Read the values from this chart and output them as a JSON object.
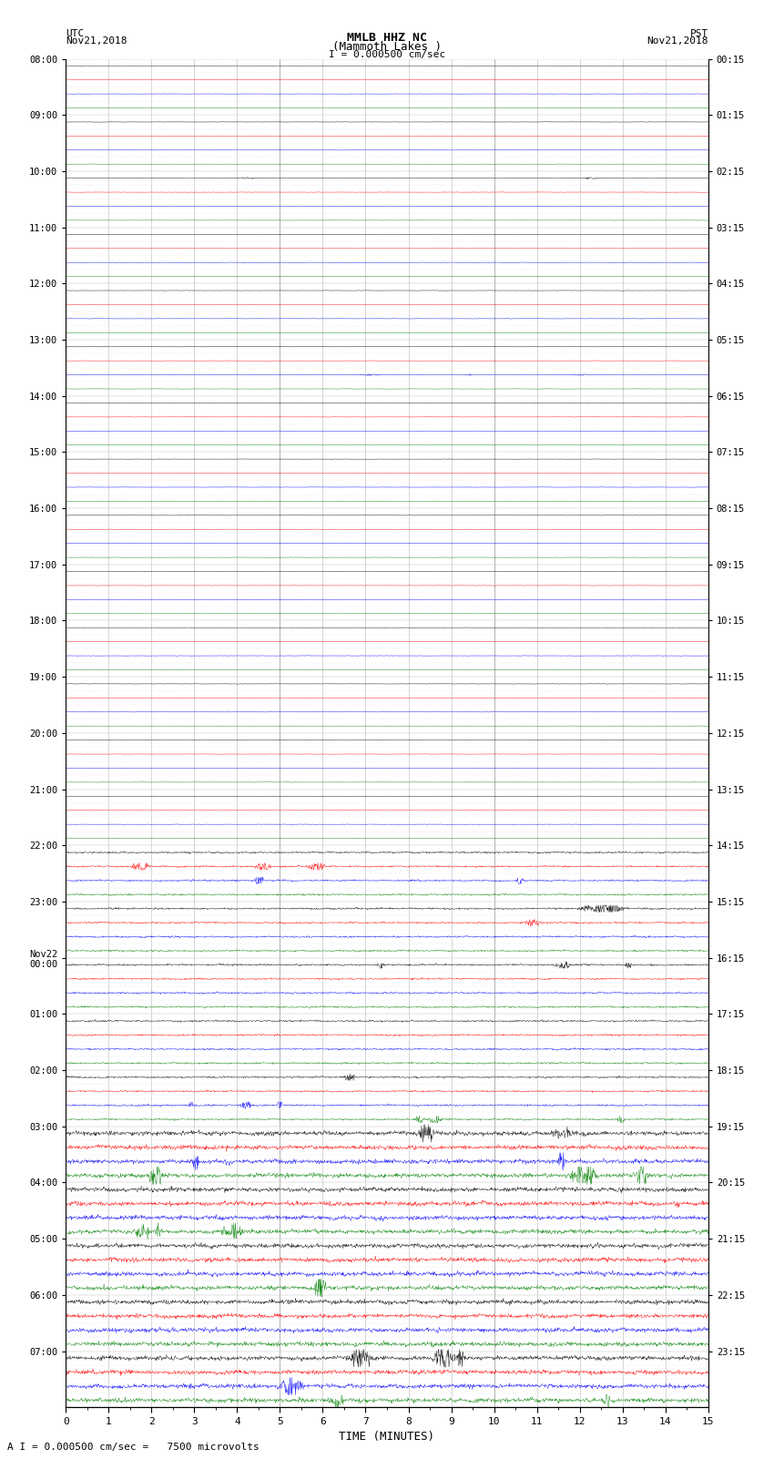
{
  "title_line1": "MMLB HHZ NC",
  "title_line2": "(Mammoth Lakes )",
  "scale_label": "I = 0.000500 cm/sec",
  "bottom_label": "A I = 0.000500 cm/sec =   7500 microvolts",
  "xlabel": "TIME (MINUTES)",
  "utc_header": "UTC",
  "utc_date": "Nov21,2018",
  "pst_header": "PST",
  "pst_date": "Nov21,2018",
  "utc_times_labeled": [
    "08:00",
    "09:00",
    "10:00",
    "11:00",
    "12:00",
    "13:00",
    "14:00",
    "15:00",
    "16:00",
    "17:00",
    "18:00",
    "19:00",
    "20:00",
    "21:00",
    "22:00",
    "23:00",
    "Nov22\n00:00",
    "01:00",
    "02:00",
    "03:00",
    "04:00",
    "05:00",
    "06:00",
    "07:00"
  ],
  "pst_times_labeled": [
    "00:15",
    "01:15",
    "02:15",
    "03:15",
    "04:15",
    "05:15",
    "06:15",
    "07:15",
    "08:15",
    "09:15",
    "10:15",
    "11:15",
    "12:15",
    "13:15",
    "14:15",
    "15:15",
    "16:15",
    "17:15",
    "18:15",
    "19:15",
    "20:15",
    "21:15",
    "22:15",
    "23:15"
  ],
  "trace_colors": [
    "black",
    "red",
    "blue",
    "green"
  ],
  "n_hours": 24,
  "traces_per_hour": 4,
  "n_points": 1500,
  "xmin": 0,
  "xmax": 15,
  "background_color": "white",
  "grid_color": "#999999",
  "figsize": [
    8.5,
    16.13
  ],
  "dpi": 100,
  "amp_quiet": 0.015,
  "amp_moderate": 0.07,
  "amp_active": 0.18,
  "quiet_hours": [
    0,
    1,
    2,
    3,
    4,
    5,
    6,
    7,
    8,
    9,
    10,
    11,
    12,
    13
  ],
  "moderate_hours": [
    14,
    15,
    16,
    17,
    18
  ],
  "active_hours": [
    19,
    20,
    21,
    22,
    23
  ]
}
